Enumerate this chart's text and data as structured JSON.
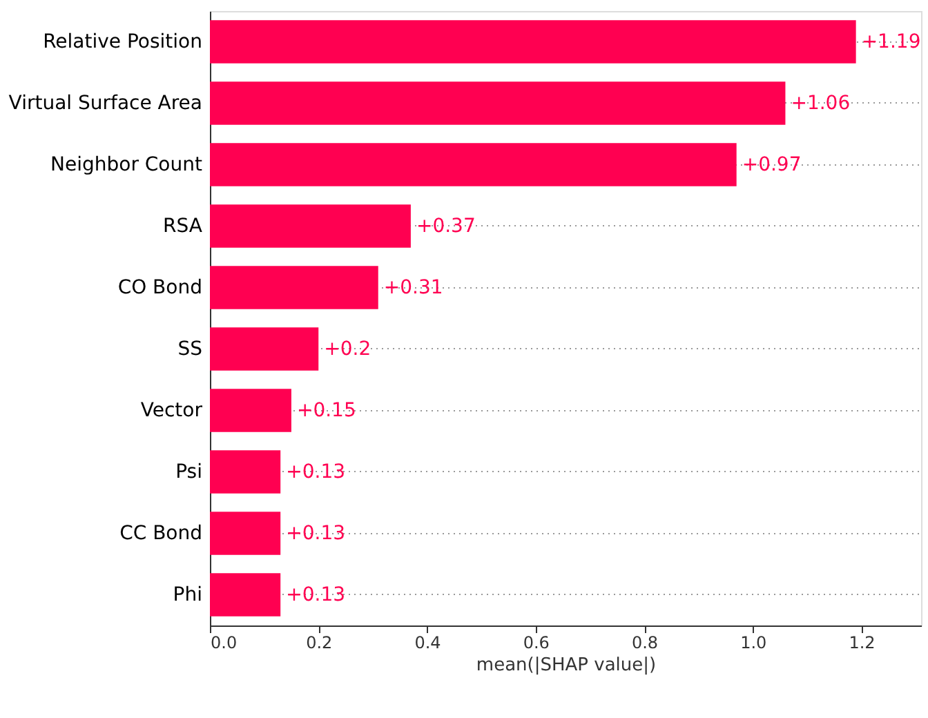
{
  "chart_data": {
    "type": "bar",
    "orientation": "horizontal",
    "xlabel": "mean(|SHAP value|)",
    "categories": [
      "Relative Position",
      "Virtual Surface Area",
      "Neighbor Count",
      "RSA",
      "CO Bond",
      "SS",
      "Vector",
      "Psi",
      "CC Bond",
      "Phi"
    ],
    "values": [
      1.19,
      1.06,
      0.97,
      0.37,
      0.31,
      0.2,
      0.15,
      0.13,
      0.13,
      0.13
    ],
    "value_labels": [
      "+1.19",
      "+1.06",
      "+0.97",
      "+0.37",
      "+0.31",
      "+0.2",
      "+0.15",
      "+0.13",
      "+0.13",
      "+0.13"
    ],
    "color": "#ff0051",
    "xlim": [
      0,
      1.31
    ],
    "xticks": [
      {
        "value": 0,
        "label": "0.0"
      },
      {
        "value": 0.2,
        "label": "0.2"
      },
      {
        "value": 0.4,
        "label": "0.4"
      },
      {
        "value": 0.6,
        "label": "0.6"
      },
      {
        "value": 0.8,
        "label": "0.8"
      },
      {
        "value": 1.0,
        "label": "1.0"
      },
      {
        "value": 1.2,
        "label": "1.2"
      }
    ],
    "grid": "y",
    "legend": false
  }
}
